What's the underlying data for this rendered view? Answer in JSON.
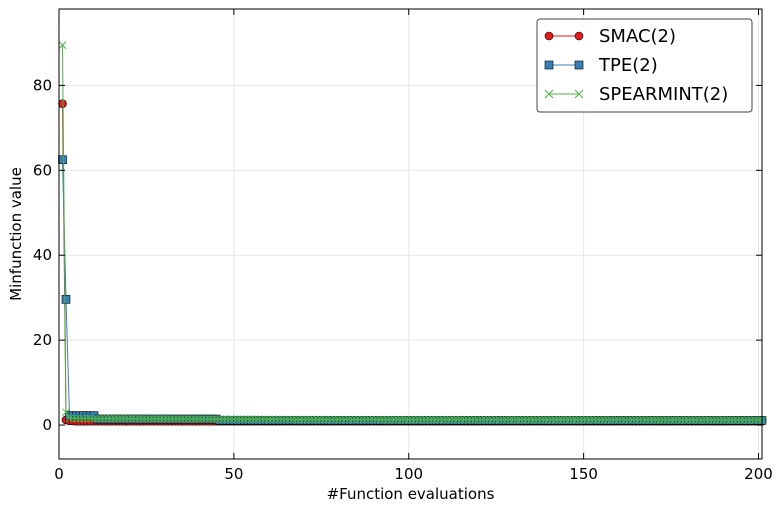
{
  "chart_data": {
    "type": "line",
    "xlabel": "#Function evaluations",
    "ylabel": "Minfunction value",
    "xlim": [
      0,
      201
    ],
    "ylim": [
      -8,
      98
    ],
    "xticks": [
      0,
      50,
      100,
      150,
      200
    ],
    "yticks": [
      0,
      20,
      40,
      60,
      80
    ],
    "grid": true,
    "legend_position": "top-right",
    "series": [
      {
        "name": "SMAC(2)",
        "color": "#e41a1c",
        "marker": "circle",
        "points": [
          [
            1,
            75.7
          ],
          [
            2,
            1.2
          ],
          [
            3,
            1.0
          ],
          [
            5,
            0.9
          ],
          [
            8,
            0.9
          ],
          [
            10,
            0.9
          ],
          [
            201,
            0.9
          ]
        ]
      },
      {
        "name": "TPE(2)",
        "color": "#377eb8",
        "marker": "square",
        "points": [
          [
            1,
            62.5
          ],
          [
            2,
            29.6
          ],
          [
            3,
            2.2
          ],
          [
            5,
            2.2
          ],
          [
            8,
            2.2
          ],
          [
            10,
            2.2
          ],
          [
            11,
            1.4
          ],
          [
            45,
            1.4
          ],
          [
            46,
            1.1
          ],
          [
            201,
            1.1
          ]
        ]
      },
      {
        "name": "SPEARMINT(2)",
        "color": "#4daf4a",
        "marker": "x",
        "points": [
          [
            1,
            89.5
          ],
          [
            2,
            3.0
          ],
          [
            3,
            1.6
          ],
          [
            5,
            1.5
          ],
          [
            10,
            1.5
          ],
          [
            45,
            1.4
          ],
          [
            70,
            1.3
          ],
          [
            201,
            1.2
          ]
        ]
      }
    ]
  }
}
